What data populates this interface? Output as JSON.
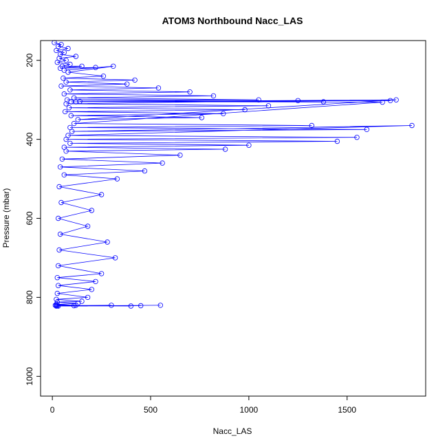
{
  "chart_data": {
    "type": "scatter",
    "title": "ATOM3 Northbound Nacc_LAS",
    "xlabel": "Nacc_LAS",
    "ylabel": "Pressure (mbar)",
    "xlim": [
      -60,
      1900
    ],
    "ylim": [
      1050,
      150
    ],
    "y_reversed": true,
    "x_ticks": [
      0,
      500,
      1000,
      1500
    ],
    "y_ticks": [
      200,
      400,
      600,
      800,
      1000
    ],
    "grid": false,
    "legend": "none",
    "point_style": "open-circle",
    "connected": true,
    "series_color": "#0000ff",
    "series": [
      {
        "x": [
          10,
          45,
          30,
          80,
          20,
          60,
          40,
          120,
          35,
          70,
          25,
          90,
          50,
          150,
          40,
          220,
          60,
          310,
          80,
          260,
          55,
          420,
          70,
          380,
          45,
          540,
          90,
          700,
          60,
          820,
          110,
          1050,
          75,
          1380,
          95,
          1250,
          70,
          1100,
          85,
          980,
          65,
          870,
          95,
          760,
          130,
          1750,
          120,
          1720,
          140,
          1680,
          110,
          1320,
          90,
          1600,
          100,
          1830,
          80,
          1550,
          70,
          1450,
          90,
          1000,
          60,
          880,
          70,
          650,
          50,
          560,
          40,
          470,
          60,
          330,
          35,
          250,
          45,
          200,
          30,
          180,
          40,
          280,
          35,
          320,
          30,
          250,
          25,
          220,
          30,
          200,
          25,
          180,
          20,
          150,
          25,
          130,
          20,
          120,
          15,
          110,
          20,
          300,
          25,
          400,
          20,
          450,
          30,
          550
        ],
        "y": [
          155,
          160,
          165,
          170,
          175,
          180,
          185,
          190,
          195,
          200,
          205,
          210,
          215,
          215,
          220,
          218,
          225,
          215,
          230,
          240,
          245,
          250,
          255,
          260,
          265,
          270,
          275,
          280,
          285,
          290,
          295,
          300,
          300,
          305,
          305,
          302,
          310,
          315,
          320,
          325,
          330,
          335,
          340,
          345,
          350,
          300,
          305,
          302,
          304,
          306,
          360,
          365,
          370,
          375,
          380,
          365,
          390,
          395,
          400,
          405,
          410,
          415,
          420,
          425,
          430,
          440,
          450,
          460,
          470,
          480,
          490,
          500,
          520,
          540,
          560,
          580,
          600,
          620,
          640,
          660,
          680,
          700,
          720,
          740,
          750,
          760,
          770,
          780,
          790,
          800,
          805,
          810,
          812,
          815,
          818,
          820,
          820,
          821,
          822,
          820,
          821,
          822,
          820,
          821,
          822,
          820
        ]
      }
    ]
  }
}
